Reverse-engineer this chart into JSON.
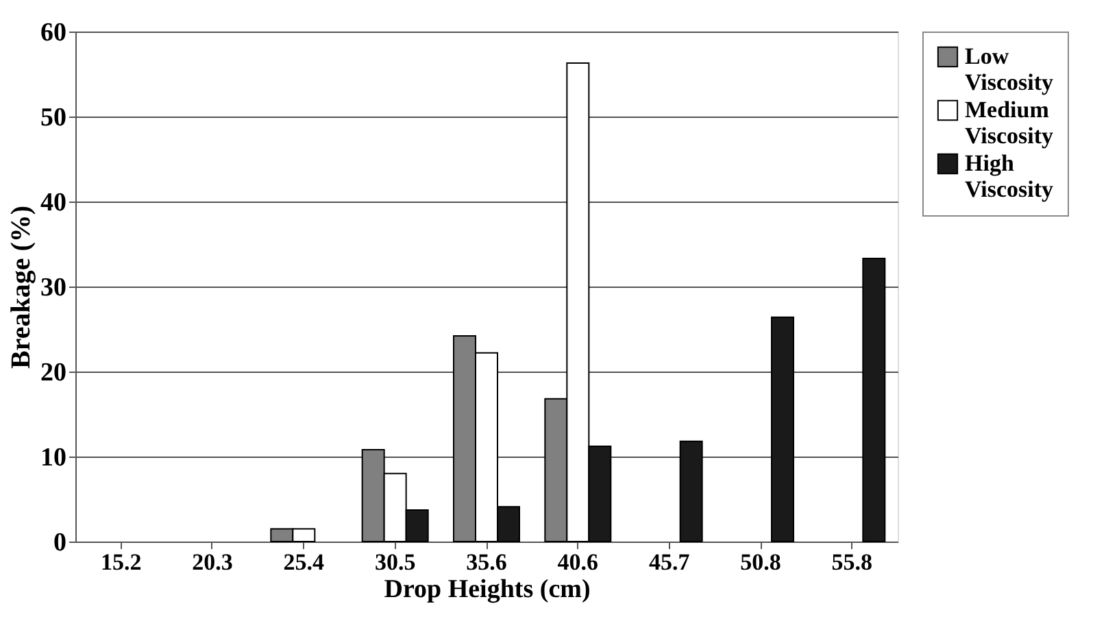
{
  "chart_data": {
    "type": "bar",
    "xlabel": "Drop Heights (cm)",
    "ylabel": "Breakage (%)",
    "categories": [
      "15.2",
      "20.3",
      "25.4",
      "30.5",
      "35.6",
      "40.6",
      "45.7",
      "50.8",
      "55.8"
    ],
    "series": [
      {
        "name": "Low Viscosity",
        "color": "#808080",
        "values": [
          null,
          null,
          1.5,
          10.8,
          24.2,
          16.8,
          null,
          null,
          null
        ]
      },
      {
        "name": "Medium Viscosity",
        "color": "#ffffff",
        "values": [
          null,
          null,
          1.5,
          8,
          22.2,
          56.3,
          null,
          null,
          null
        ]
      },
      {
        "name": "High Viscosity",
        "color": "#1a1a1a",
        "values": [
          null,
          null,
          null,
          3.7,
          4.1,
          11.2,
          11.8,
          26.4,
          33.3
        ]
      }
    ],
    "ylim": [
      0,
      60
    ],
    "yticks": [
      0,
      10,
      20,
      30,
      40,
      50,
      60
    ],
    "grid": "y",
    "legend": "right"
  }
}
